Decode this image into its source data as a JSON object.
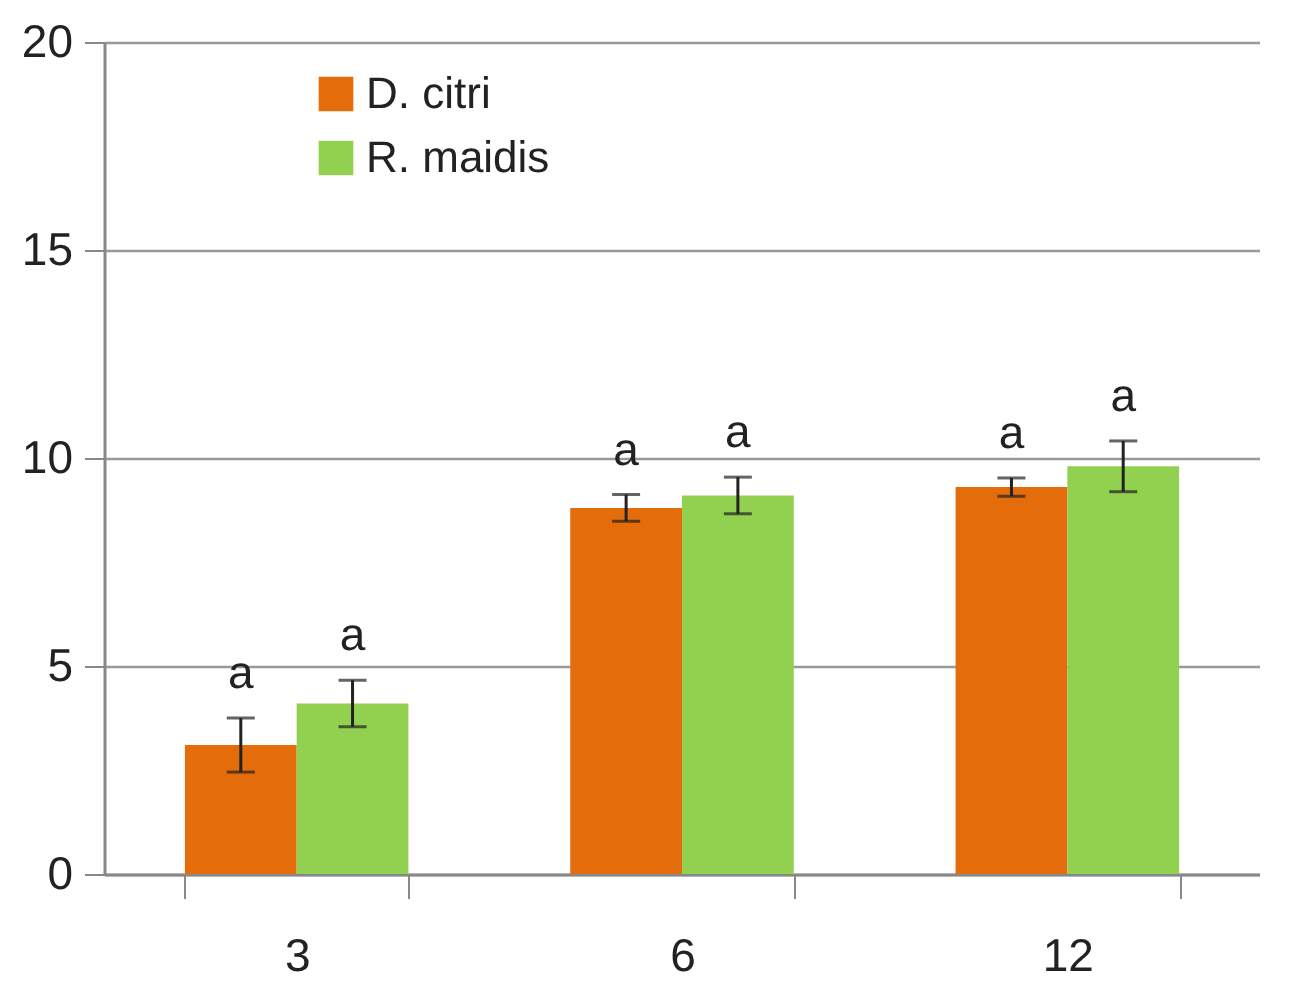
{
  "chart_data": {
    "type": "bar",
    "categories": [
      "3",
      "6",
      "12"
    ],
    "series": [
      {
        "name": "D. citri",
        "color": "#e46c0a",
        "values": [
          3.1,
          8.8,
          9.3
        ],
        "errors": [
          0.65,
          0.32,
          0.22
        ]
      },
      {
        "name": "R. maidis",
        "color": "#92d050",
        "values": [
          4.1,
          9.1,
          9.8
        ],
        "errors": [
          0.56,
          0.44,
          0.61
        ]
      }
    ],
    "ylim": [
      0,
      20
    ],
    "yticks": [
      0,
      5,
      10,
      15,
      20
    ],
    "grid": "y",
    "legend": "top left",
    "annotations": [
      "a",
      "a",
      "a",
      "a",
      "a",
      "a"
    ]
  }
}
